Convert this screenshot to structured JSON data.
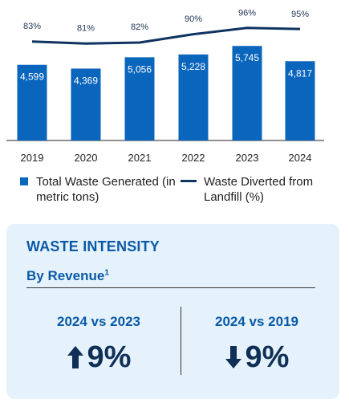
{
  "chart_data": {
    "type": "bar",
    "categories": [
      "2019",
      "2020",
      "2021",
      "2022",
      "2023",
      "2024"
    ],
    "series": [
      {
        "name": "Total Waste Generated (in metric tons)",
        "type": "bar",
        "values": [
          4599,
          4369,
          5056,
          5228,
          5745,
          4817
        ],
        "labels": [
          "4,599",
          "4,369",
          "5,056",
          "5,228",
          "5,745",
          "4,817"
        ]
      },
      {
        "name": "Waste Diverted from Landfill (%)",
        "type": "line",
        "values": [
          83,
          81,
          82,
          90,
          96,
          95
        ],
        "labels": [
          "83%",
          "81%",
          "82%",
          "90%",
          "96%",
          "95%"
        ]
      }
    ],
    "colors": {
      "bar": "#0a65bd",
      "line": "#0f3461"
    },
    "legend_position": "bottom",
    "grid": false
  },
  "legend": {
    "bar_label": "Total Waste Generated (in metric tons)",
    "line_label": "Waste Diverted from Landfill (%)"
  },
  "panel": {
    "title": "WASTE INTENSITY",
    "subtitle": "By Revenue",
    "subtitle_sup": "1",
    "comparisons": [
      {
        "label": "2024 vs 2023",
        "direction": "up",
        "icon": "arrow-up-icon",
        "value": "9%"
      },
      {
        "label": "2024 vs 2019",
        "direction": "down",
        "icon": "arrow-down-icon",
        "value": "9%"
      }
    ]
  }
}
